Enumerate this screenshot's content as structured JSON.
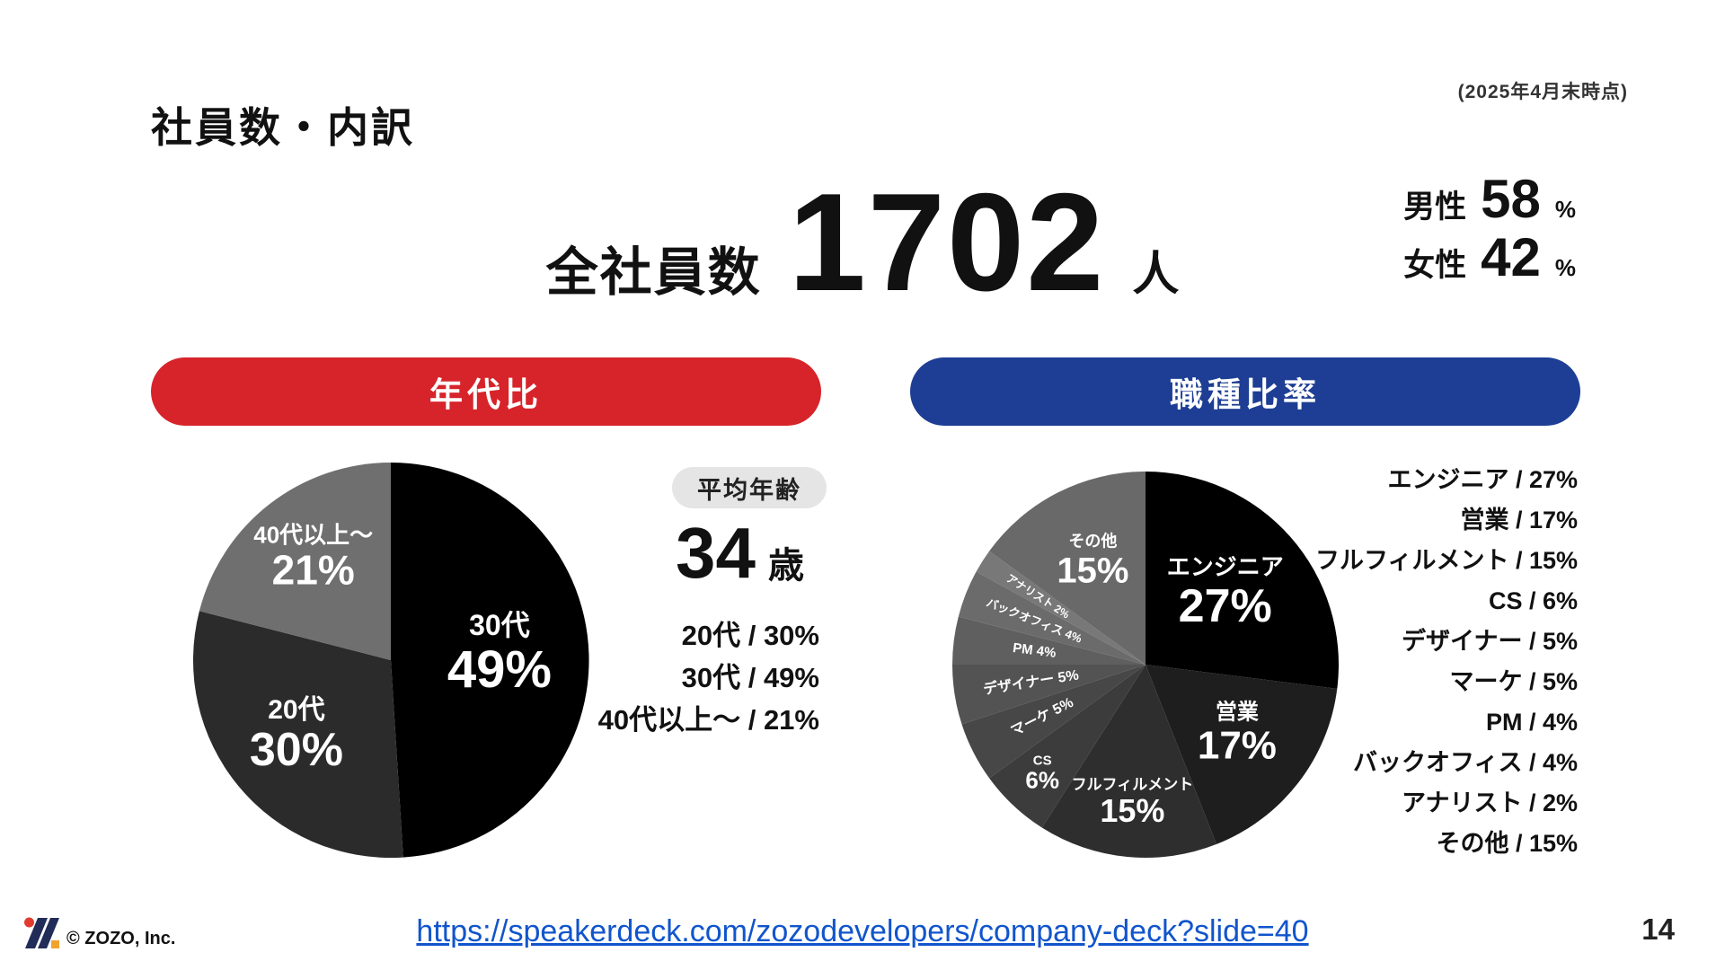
{
  "meta": {
    "date_note": "(2025年4月末時点)",
    "copyright": "© ZOZO, Inc.",
    "link_text": "https://speakerdeck.com/zozodevelopers/company-deck?slide=40",
    "page_number": "14"
  },
  "header": {
    "title": "社員数・内訳"
  },
  "headline": {
    "label": "全社員数",
    "value": "1702",
    "unit": "人"
  },
  "gender": {
    "male_label": "男性",
    "male_value": "58",
    "female_label": "女性",
    "female_value": "42",
    "percent_sign": "%"
  },
  "banners": {
    "age": {
      "label": "年代比",
      "color": "#d7242b"
    },
    "job": {
      "label": "職種比率",
      "color": "#1d3e94"
    }
  },
  "age_panel": {
    "badge": "平均年齢",
    "average_value": "34",
    "average_unit": "歳",
    "lines": [
      "20代 / 30%",
      "30代 / 49%",
      "40代以上〜 / 21%"
    ]
  },
  "job_legend": [
    "エンジニア / 27%",
    "営業 / 17%",
    "フルフィルメント / 15%",
    "CS / 6%",
    "デザイナー / 5%",
    "マーケ / 5%",
    "PM / 4%",
    "バックオフィス / 4%",
    "アナリスト / 2%",
    "その他 / 15%"
  ],
  "chart_data": [
    {
      "type": "pie",
      "title": "年代比",
      "unit": "%",
      "start_angle_deg": -90,
      "direction": "clockwise",
      "slices": [
        {
          "label": "30代",
          "value": 49,
          "color": "#000000",
          "label_mode": "stacked",
          "label_r": 0.55,
          "name_size": 32,
          "value_size": 58,
          "text_color": "#ffffff"
        },
        {
          "label": "20代",
          "value": 30,
          "color": "#2b2b2b",
          "label_mode": "stacked",
          "label_r": 0.62,
          "name_size": 30,
          "value_size": 52,
          "text_color": "#ffffff"
        },
        {
          "label": "40代以上〜",
          "value": 21,
          "color": "#6f6f6f",
          "label_mode": "stacked",
          "label_r": 0.64,
          "name_size": 26,
          "value_size": 46,
          "text_color": "#ffffff"
        }
      ]
    },
    {
      "type": "pie",
      "title": "職種比率",
      "unit": "%",
      "start_angle_deg": -90,
      "direction": "clockwise",
      "slices": [
        {
          "label": "エンジニア",
          "value": 27,
          "color": "#000000",
          "label_mode": "stacked",
          "label_r": 0.55,
          "name_size": 26,
          "value_size": 52,
          "text_color": "#ffffff"
        },
        {
          "label": "営業",
          "value": 17,
          "color": "#1e1e1e",
          "label_mode": "stacked",
          "label_r": 0.6,
          "name_size": 24,
          "value_size": 44,
          "text_color": "#ffffff"
        },
        {
          "label": "フルフィルメント",
          "value": 15,
          "color": "#2e2e2e",
          "label_mode": "stacked",
          "label_r": 0.72,
          "name_size": 17,
          "value_size": 36,
          "text_color": "#ffffff"
        },
        {
          "label": "CS",
          "value": 6,
          "color": "#3c3c3c",
          "label_mode": "stacked",
          "label_r": 0.78,
          "name_size": 15,
          "value_size": 26,
          "text_color": "#ffffff"
        },
        {
          "label": "マーケ",
          "value": 5,
          "color": "#474747",
          "label_mode": "rotated",
          "label_r": 0.6,
          "name_size": 16,
          "text_color": "#ffffff"
        },
        {
          "label": "デザイナー",
          "value": 5,
          "color": "#535353",
          "label_mode": "rotated",
          "label_r": 0.6,
          "name_size": 16,
          "text_color": "#ffffff"
        },
        {
          "label": "PM",
          "value": 4,
          "color": "#5f5f5f",
          "label_mode": "rotated",
          "label_r": 0.58,
          "name_size": 15,
          "text_color": "#ffffff"
        },
        {
          "label": "バックオフィス",
          "value": 4,
          "color": "#6b6b6b",
          "label_mode": "rotated",
          "label_r": 0.62,
          "name_size": 13,
          "text_color": "#ffffff"
        },
        {
          "label": "アナリスト",
          "value": 2,
          "color": "#787878",
          "label_mode": "rotated",
          "label_r": 0.66,
          "name_size": 12,
          "text_color": "#ffffff"
        },
        {
          "label": "その他",
          "value": 15,
          "color": "#696969",
          "label_mode": "stacked",
          "label_r": 0.6,
          "name_size": 18,
          "value_size": 40,
          "text_color": "#ffffff"
        }
      ]
    }
  ]
}
